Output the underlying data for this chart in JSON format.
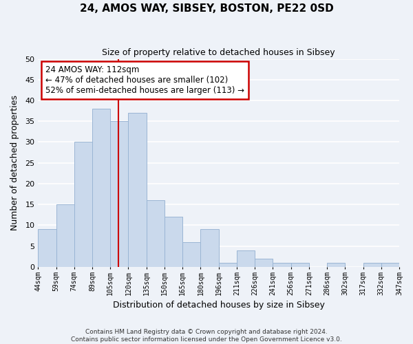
{
  "title": "24, AMOS WAY, SIBSEY, BOSTON, PE22 0SD",
  "subtitle": "Size of property relative to detached houses in Sibsey",
  "xlabel": "Distribution of detached houses by size in Sibsey",
  "ylabel": "Number of detached properties",
  "footer_line1": "Contains HM Land Registry data © Crown copyright and database right 2024.",
  "footer_line2": "Contains public sector information licensed under the Open Government Licence v3.0.",
  "bin_labels": [
    "44sqm",
    "59sqm",
    "74sqm",
    "89sqm",
    "105sqm",
    "120sqm",
    "135sqm",
    "150sqm",
    "165sqm",
    "180sqm",
    "196sqm",
    "211sqm",
    "226sqm",
    "241sqm",
    "256sqm",
    "271sqm",
    "286sqm",
    "302sqm",
    "317sqm",
    "332sqm",
    "347sqm"
  ],
  "bar_heights": [
    9,
    15,
    30,
    38,
    35,
    37,
    16,
    12,
    6,
    9,
    1,
    4,
    2,
    1,
    1,
    0,
    1,
    0,
    1,
    1
  ],
  "bar_color": "#cad9ec",
  "bar_edge_color": "#9ab5d4",
  "highlight_line_color": "#cc0000",
  "ylim": [
    0,
    50
  ],
  "yticks": [
    0,
    5,
    10,
    15,
    20,
    25,
    30,
    35,
    40,
    45,
    50
  ],
  "annotation_title": "24 AMOS WAY: 112sqm",
  "annotation_line1": "← 47% of detached houses are smaller (102)",
  "annotation_line2": "52% of semi-detached houses are larger (113) →",
  "annotation_box_color": "#ffffff",
  "annotation_box_edge": "#cc0000",
  "background_color": "#eef2f8",
  "grid_color": "#ffffff"
}
